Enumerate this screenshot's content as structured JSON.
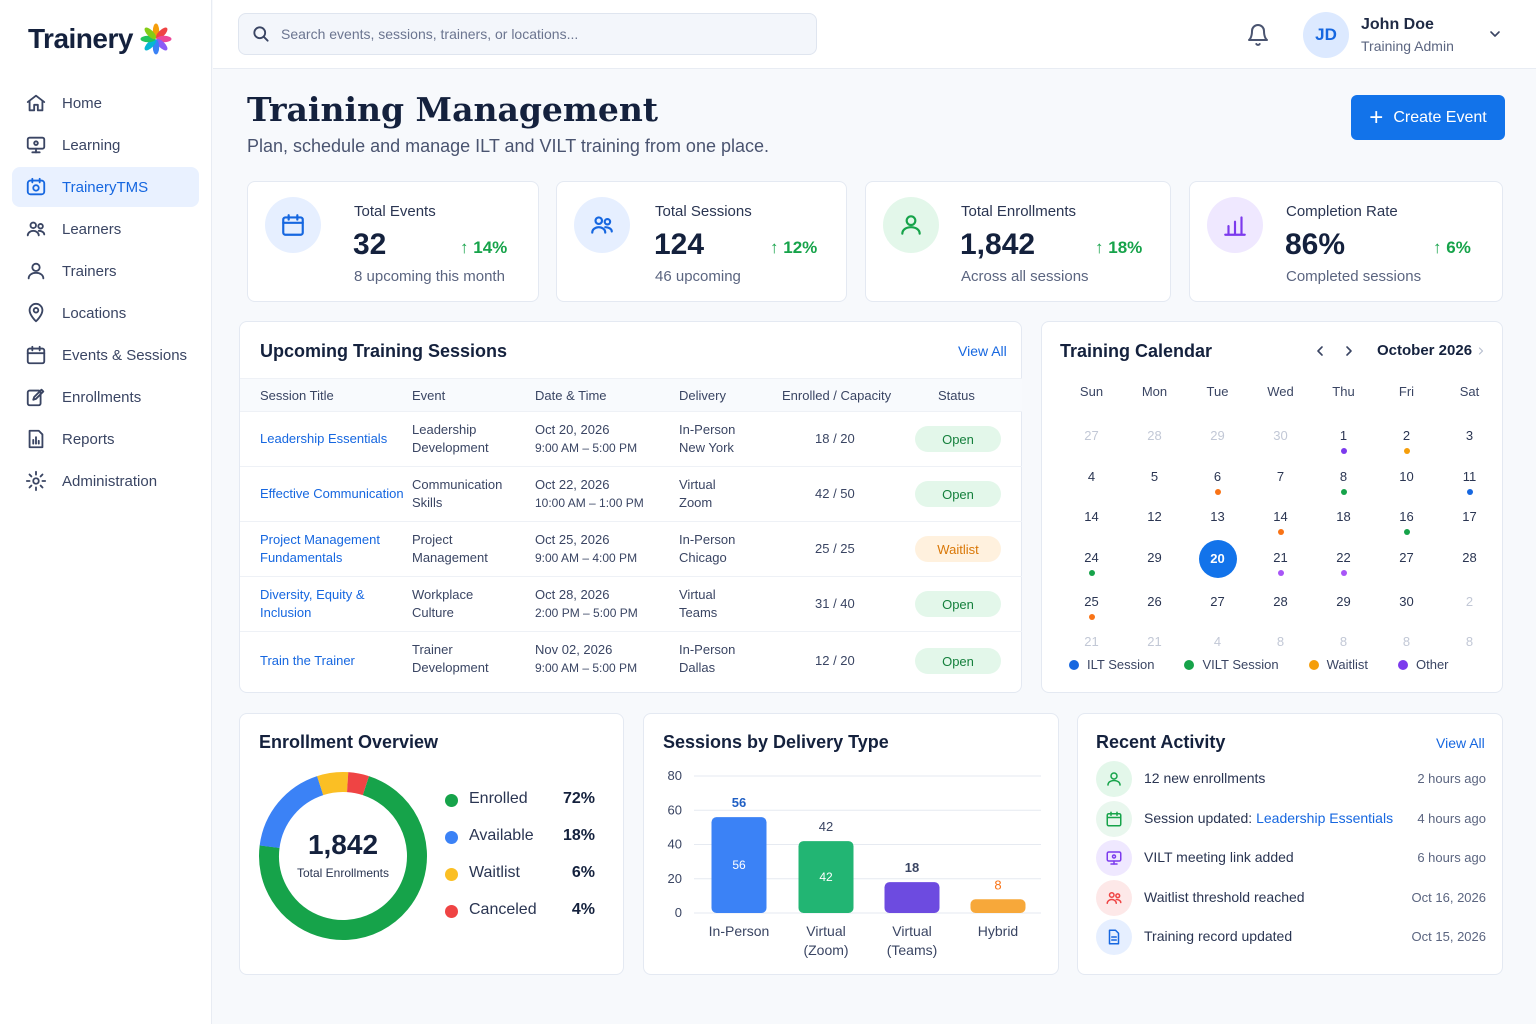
{
  "brand": {
    "name": "Trainery"
  },
  "sidebar": {
    "items": [
      {
        "label": "Home",
        "icon": "home-icon"
      },
      {
        "label": "Learning",
        "icon": "monitor-icon"
      },
      {
        "label": "TraineryTMS",
        "icon": "tms-icon",
        "active": true
      },
      {
        "label": "Learners",
        "icon": "users-icon"
      },
      {
        "label": "Trainers",
        "icon": "user-icon"
      },
      {
        "label": "Locations",
        "icon": "map-pin-icon"
      },
      {
        "label": "Events & Sessions",
        "icon": "calendar-icon"
      },
      {
        "label": "Enrollments",
        "icon": "edit-icon"
      },
      {
        "label": "Reports",
        "icon": "report-icon"
      },
      {
        "label": "Administration",
        "icon": "gear-icon"
      }
    ]
  },
  "topbar": {
    "search_placeholder": "Search events, sessions, trainers, or locations...",
    "user": {
      "initials": "JD",
      "name": "John Doe",
      "role": "Training Admin"
    }
  },
  "header": {
    "title": "Training Management",
    "subtitle": "Plan, schedule and manage ILT and VILT training from one place.",
    "create_button": "Create Event"
  },
  "stats": [
    {
      "label": "Total Events",
      "value": "32",
      "trend": "14%",
      "sub": "8 upcoming this month",
      "icon": "calendar-icon",
      "color": "#1667e0",
      "bg": "#e6efff"
    },
    {
      "label": "Total Sessions",
      "value": "124",
      "trend": "12%",
      "sub": "46 upcoming",
      "icon": "users-icon",
      "color": "#1667e0",
      "bg": "#e6efff"
    },
    {
      "label": "Total Enrollments",
      "value": "1,842",
      "trend": "18%",
      "sub": "Across all sessions",
      "icon": "user-icon",
      "color": "#16a34a",
      "bg": "#e3f7ea"
    },
    {
      "label": "Completion Rate",
      "value": "86%",
      "trend": "6%",
      "sub": "Completed sessions",
      "icon": "bar-chart-icon",
      "color": "#7c3aed",
      "bg": "#efe8ff"
    }
  ],
  "sessions": {
    "title": "Upcoming Training Sessions",
    "view_all": "View All",
    "columns": [
      "Session Title",
      "Event",
      "Date & Time",
      "Delivery",
      "Enrolled / Capacity",
      "Status"
    ],
    "rows": [
      {
        "title": [
          "Leadership Essentials"
        ],
        "event": [
          "Leadership",
          "Development"
        ],
        "date": "Oct 20, 2026",
        "time": "9:00 AM – 5:00 PM",
        "delivery": [
          "In-Person",
          "New York"
        ],
        "enrolled": "18 / 20",
        "status": "Open"
      },
      {
        "title": [
          "Effective Communication"
        ],
        "event": [
          "Communication",
          "Skills"
        ],
        "date": "Oct 22, 2026",
        "time": "10:00 AM – 1:00 PM",
        "delivery": [
          "Virtual",
          "Zoom"
        ],
        "enrolled": "42 / 50",
        "status": "Open"
      },
      {
        "title": [
          "Project Management",
          "Fundamentals"
        ],
        "event": [
          "Project",
          "Management"
        ],
        "date": "Oct 25, 2026",
        "time": "9:00 AM – 4:00 PM",
        "delivery": [
          "In-Person",
          "Chicago"
        ],
        "enrolled": "25 / 25",
        "status": "Waitlist"
      },
      {
        "title": [
          "Diversity, Equity &",
          "Inclusion"
        ],
        "event": [
          "Workplace",
          "Culture"
        ],
        "date": "Oct 28, 2026",
        "time": "2:00 PM – 5:00 PM",
        "delivery": [
          "Virtual",
          "Teams"
        ],
        "enrolled": "31 / 40",
        "status": "Open"
      },
      {
        "title": [
          "Train the Trainer"
        ],
        "event": [
          "Trainer",
          "Development"
        ],
        "date": "Nov 02, 2026",
        "time": "9:00 AM – 5:00 PM",
        "delivery": [
          "In-Person",
          "Dallas"
        ],
        "enrolled": "12 / 20",
        "status": "Open"
      }
    ]
  },
  "calendar": {
    "title": "Training Calendar",
    "month": "October 2026",
    "dow": [
      "Sun",
      "Mon",
      "Tue",
      "Wed",
      "Thu",
      "Fri",
      "Sat"
    ],
    "weeks": [
      [
        {
          "d": "27",
          "o": true
        },
        {
          "d": "28",
          "o": true
        },
        {
          "d": "29",
          "o": true
        },
        {
          "d": "30",
          "o": true
        },
        {
          "d": "1",
          "dot": "#7c3aed"
        },
        {
          "d": "2",
          "dot": "#f59e0b"
        },
        {
          "d": "3"
        }
      ],
      [
        {
          "d": "4"
        },
        {
          "d": "5"
        },
        {
          "d": "6",
          "dot": "#f97316"
        },
        {
          "d": "7"
        },
        {
          "d": "8",
          "dot": "#16a34a"
        },
        {
          "d": "10"
        },
        {
          "d": "11",
          "dot": "#1667e0"
        }
      ],
      [
        {
          "d": "14"
        },
        {
          "d": "12"
        },
        {
          "d": "13"
        },
        {
          "d": "14",
          "dot": "#f97316"
        },
        {
          "d": "18"
        },
        {
          "d": "16",
          "dot": "#16a34a"
        },
        {
          "d": "17"
        }
      ],
      [
        {
          "d": "24",
          "dot": "#16a34a"
        },
        {
          "d": "29"
        },
        {
          "d": "20",
          "today": true
        },
        {
          "d": "21",
          "dot": "#a855f7"
        },
        {
          "d": "22",
          "dot": "#a855f7"
        },
        {
          "d": "27"
        },
        {
          "d": "28"
        }
      ],
      [
        {
          "d": "25",
          "dot": "#f97316"
        },
        {
          "d": "26"
        },
        {
          "d": "27"
        },
        {
          "d": "28"
        },
        {
          "d": "29"
        },
        {
          "d": "30"
        },
        {
          "d": "2",
          "o": true
        }
      ],
      [
        {
          "d": "21",
          "o": true
        },
        {
          "d": "21",
          "o": true
        },
        {
          "d": "4",
          "o": true
        },
        {
          "d": "8",
          "o": true
        },
        {
          "d": "8",
          "o": true
        },
        {
          "d": "8",
          "o": true
        },
        {
          "d": "8",
          "o": true
        }
      ]
    ],
    "legend": [
      {
        "label": "ILT Session",
        "color": "#1667e0"
      },
      {
        "label": "VILT Session",
        "color": "#16a34a"
      },
      {
        "label": "Waitlist",
        "color": "#f59e0b"
      },
      {
        "label": "Other",
        "color": "#7c3aed"
      }
    ]
  },
  "enrollment": {
    "title": "Enrollment Overview",
    "total": "1,842",
    "total_label": "Total Enrollments",
    "items": [
      {
        "label": "Enrolled",
        "pct": "72%",
        "value": 72,
        "color": "#16a34a"
      },
      {
        "label": "Available",
        "pct": "18%",
        "value": 18,
        "color": "#3b82f6"
      },
      {
        "label": "Waitlist",
        "pct": "6%",
        "value": 6,
        "color": "#fbbf24"
      },
      {
        "label": "Canceled",
        "pct": "4%",
        "value": 4,
        "color": "#ef4444"
      }
    ]
  },
  "chart_data": {
    "type": "bar",
    "title": "Sessions by Delivery Type",
    "categories": [
      [
        "In-Person"
      ],
      [
        "Virtual",
        "(Zoom)"
      ],
      [
        "Virtual",
        "(Teams)"
      ],
      [
        "Hybrid"
      ]
    ],
    "values": [
      56,
      42,
      18,
      8
    ],
    "colors": [
      "#3b82f6",
      "#22b573",
      "#6d4be0",
      "#f7a83a"
    ],
    "ylim": [
      0,
      80
    ],
    "yticks": [
      "80",
      "60",
      "40",
      "20",
      "0"
    ],
    "grid": true
  },
  "activity": {
    "title": "Recent Activity",
    "view_all": "View All",
    "items": [
      {
        "text": "12 new enrollments",
        "link": "",
        "time": "2 hours ago",
        "icon": "user-icon",
        "color": "#16a34a",
        "bg": "#e3f7ea"
      },
      {
        "text": "Session updated: ",
        "link": "Leadership Essentials",
        "time": "4 hours ago",
        "icon": "calendar-icon",
        "color": "#16a34a",
        "bg": "#e9f7ee"
      },
      {
        "text": "VILT meeting link added",
        "link": "",
        "time": "6 hours ago",
        "icon": "monitor-icon",
        "color": "#7c3aed",
        "bg": "#efe8ff"
      },
      {
        "text": "Waitlist threshold reached",
        "link": "",
        "time": "Oct 16, 2026",
        "icon": "users-icon",
        "color": "#ef4444",
        "bg": "#fde8e8"
      },
      {
        "text": "Training record updated",
        "link": "",
        "time": "Oct 15, 2026",
        "icon": "document-icon",
        "color": "#1667e0",
        "bg": "#e6efff"
      }
    ]
  }
}
